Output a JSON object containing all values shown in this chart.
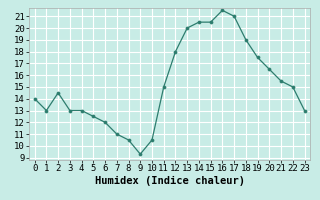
{
  "x": [
    0,
    1,
    2,
    3,
    4,
    5,
    6,
    7,
    8,
    9,
    10,
    11,
    12,
    13,
    14,
    15,
    16,
    17,
    18,
    19,
    20,
    21,
    22,
    23
  ],
  "y": [
    14.0,
    13.0,
    14.5,
    13.0,
    13.0,
    12.5,
    12.0,
    11.0,
    10.5,
    9.3,
    10.5,
    15.0,
    18.0,
    20.0,
    20.5,
    20.5,
    21.5,
    21.0,
    19.0,
    17.5,
    16.5,
    15.5,
    15.0,
    13.0
  ],
  "line_color": "#2d7d6e",
  "marker_color": "#2d7d6e",
  "bg_color": "#c8ece6",
  "grid_color": "#ffffff",
  "xlabel": "Humidex (Indice chaleur)",
  "xlim": [
    -0.5,
    23.5
  ],
  "ylim": [
    8.8,
    21.7
  ],
  "yticks": [
    9,
    10,
    11,
    12,
    13,
    14,
    15,
    16,
    17,
    18,
    19,
    20,
    21
  ],
  "xticks": [
    0,
    1,
    2,
    3,
    4,
    5,
    6,
    7,
    8,
    9,
    10,
    11,
    12,
    13,
    14,
    15,
    16,
    17,
    18,
    19,
    20,
    21,
    22,
    23
  ],
  "xtick_labels": [
    "0",
    "1",
    "2",
    "3",
    "4",
    "5",
    "6",
    "7",
    "8",
    "9",
    "10",
    "11",
    "12",
    "13",
    "14",
    "15",
    "16",
    "17",
    "18",
    "19",
    "20",
    "21",
    "22",
    "23"
  ],
  "ytick_labels": [
    "9",
    "10",
    "11",
    "12",
    "13",
    "14",
    "15",
    "16",
    "17",
    "18",
    "19",
    "20",
    "21"
  ],
  "label_fontsize": 7.5,
  "tick_fontsize": 6.5
}
